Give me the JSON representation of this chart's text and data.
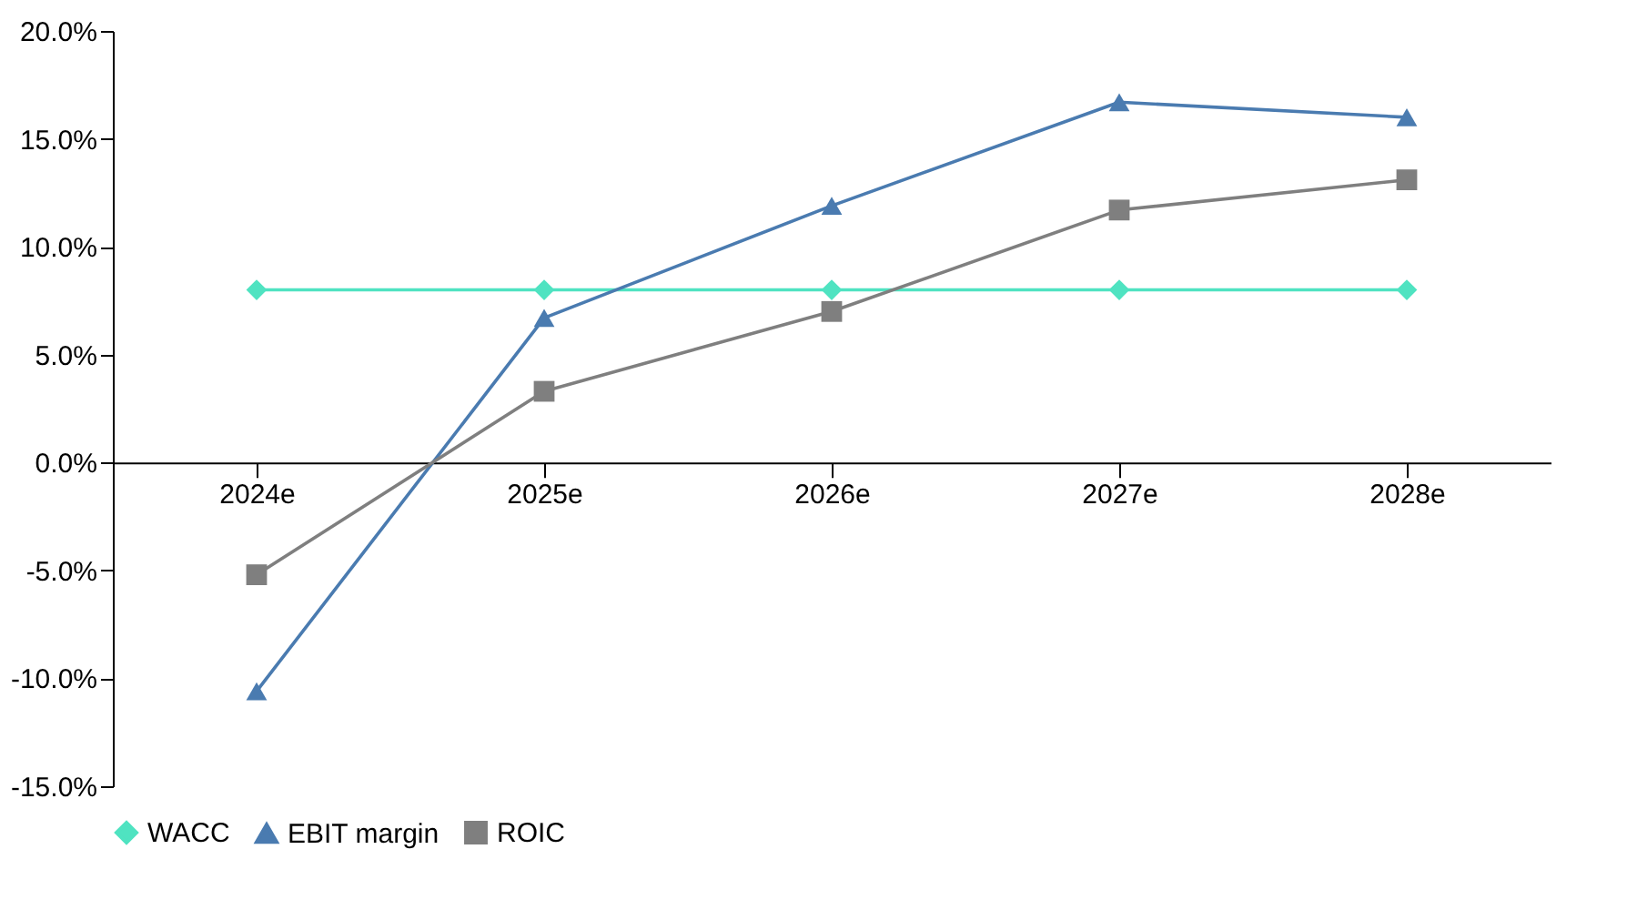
{
  "chart_data": {
    "type": "line",
    "categories": [
      "2024e",
      "2025e",
      "2026e",
      "2027e",
      "2028e"
    ],
    "series": [
      {
        "name": "WACC",
        "color": "#4fe3c1",
        "marker": "diamond",
        "values": [
          8.0,
          8.0,
          8.0,
          8.0,
          8.0
        ]
      },
      {
        "name": "EBIT margin",
        "color": "#4a7bb0",
        "marker": "triangle",
        "values": [
          -10.6,
          6.7,
          11.9,
          16.7,
          16.0
        ]
      },
      {
        "name": "ROIC",
        "color": "#7f7f7f",
        "marker": "square",
        "values": [
          -5.2,
          3.3,
          7.0,
          11.7,
          13.1
        ]
      }
    ],
    "ylim": [
      -15,
      20
    ],
    "yticks": [
      {
        "value": -15,
        "label": "-15.0%"
      },
      {
        "value": -10,
        "label": "-10.0%"
      },
      {
        "value": -5,
        "label": "-5.0%"
      },
      {
        "value": 0,
        "label": "0.0%"
      },
      {
        "value": 5,
        "label": "5.0%"
      },
      {
        "value": 10,
        "label": "10.0%"
      },
      {
        "value": 15,
        "label": "15.0%"
      },
      {
        "value": 20,
        "label": "20.0%"
      }
    ],
    "grid": false,
    "legend": "bottom",
    "line_style": "solid"
  }
}
